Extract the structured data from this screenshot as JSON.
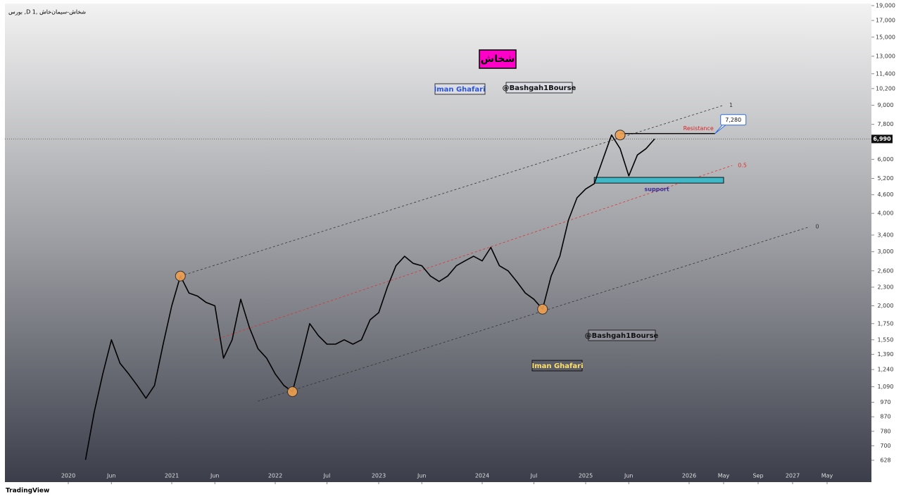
{
  "header": "بورس ,D شخاش-سیمان‌خاش ,1",
  "footer": "TradingView",
  "annotations": [
    "Iman Ghafari",
    "@Bashgah1Bourse",
    "@Bashgah1Bourse",
    "Iman Ghafari"
  ],
  "chart_data": {
    "type": "line",
    "title": "شخاش",
    "log_scale": true,
    "color": "#000000",
    "x": [
      "2020-03",
      "2020-04",
      "2020-05",
      "2020-06",
      "2020-07",
      "2020-08",
      "2020-09",
      "2020-10",
      "2020-11",
      "2020-12",
      "2021-01",
      "2021-02",
      "2021-03",
      "2021-04",
      "2021-05",
      "2021-06",
      "2021-07",
      "2021-08",
      "2021-09",
      "2021-10",
      "2021-11",
      "2021-12",
      "2022-01",
      "2022-02",
      "2022-03",
      "2022-04",
      "2022-05",
      "2022-06",
      "2022-07",
      "2022-08",
      "2022-09",
      "2022-10",
      "2022-11",
      "2022-12",
      "2023-01",
      "2023-02",
      "2023-03",
      "2023-04",
      "2023-05",
      "2023-06",
      "2023-07",
      "2023-08",
      "2023-09",
      "2023-10",
      "2023-11",
      "2023-12",
      "2024-01",
      "2024-02",
      "2024-03",
      "2024-04",
      "2024-05",
      "2024-06",
      "2024-07",
      "2024-08",
      "2024-09",
      "2024-10",
      "2024-11",
      "2024-12",
      "2025-01",
      "2025-02",
      "2025-03",
      "2025-04",
      "2025-05",
      "2025-06",
      "2025-07",
      "2025-08",
      "2025-09"
    ],
    "values": [
      630,
      900,
      1200,
      1550,
      1300,
      1200,
      1100,
      1000,
      1100,
      1500,
      2000,
      2500,
      2200,
      2150,
      2050,
      2000,
      1350,
      1550,
      2100,
      1700,
      1450,
      1350,
      1200,
      1100,
      1050,
      1350,
      1750,
      1600,
      1500,
      1500,
      1550,
      1500,
      1550,
      1800,
      1900,
      2300,
      2700,
      2900,
      2750,
      2700,
      2500,
      2400,
      2500,
      2700,
      2800,
      2900,
      2800,
      3100,
      2700,
      2600,
      2400,
      2200,
      2100,
      1950,
      2500,
      2900,
      3800,
      4500,
      4800,
      5000,
      6000,
      7200,
      6500,
      5300,
      6200,
      6500,
      6990
    ],
    "ylim": [
      533,
      19000
    ],
    "yticks": [
      {
        "value": 19000,
        "label": "19,000"
      },
      {
        "value": 17000,
        "label": "17,000"
      },
      {
        "value": 15000,
        "label": "15,000"
      },
      {
        "value": 13000,
        "label": "13,000"
      },
      {
        "value": 11400,
        "label": "11,400"
      },
      {
        "value": 10200,
        "label": "10,200"
      },
      {
        "value": 9000,
        "label": "9,000"
      },
      {
        "value": 7800,
        "label": "7,800"
      },
      {
        "value": 6000,
        "label": "6,000"
      },
      {
        "value": 5200,
        "label": "5,200"
      },
      {
        "value": 4600,
        "label": "4,600"
      },
      {
        "value": 4000,
        "label": "4,000"
      },
      {
        "value": 3400,
        "label": "3,400"
      },
      {
        "value": 3000,
        "label": "3,000"
      },
      {
        "value": 2600,
        "label": "2,600"
      },
      {
        "value": 2300,
        "label": "2,300"
      },
      {
        "value": 2000,
        "label": "2,000"
      },
      {
        "value": 1750,
        "label": "1,750"
      },
      {
        "value": 1550,
        "label": "1,550"
      },
      {
        "value": 1390,
        "label": "1,390"
      },
      {
        "value": 1240,
        "label": "1,240"
      },
      {
        "value": 1090,
        "label": "1,090"
      },
      970,
      870,
      780,
      700,
      628
    ],
    "xticks": [
      {
        "value": "2020-01",
        "label": "2020"
      },
      {
        "value": "2020-06",
        "label": "Jun"
      },
      {
        "value": "2021-01",
        "label": "2021"
      },
      {
        "value": "2021-06",
        "label": "Jun"
      },
      {
        "value": "2022-01",
        "label": "2022"
      },
      {
        "value": "2022-07",
        "label": "Jul"
      },
      {
        "value": "2023-01",
        "label": "2023"
      },
      {
        "value": "2023-06",
        "label": "Jun"
      },
      {
        "value": "2024-01",
        "label": "2024"
      },
      {
        "value": "2024-07",
        "label": "Jul"
      },
      {
        "value": "2025-01",
        "label": "2025"
      },
      {
        "value": "2025-06",
        "label": "Jun"
      },
      {
        "value": "2026-01",
        "label": "2026"
      },
      {
        "value": "2026-05",
        "label": "May"
      },
      {
        "value": "2026-09",
        "label": "Sep"
      },
      {
        "value": "2027-01",
        "label": "2027"
      },
      {
        "value": "2027-05",
        "label": "May"
      }
    ],
    "channels": [
      {
        "label": "1",
        "color": "#333333",
        "x": [
          "2021-02",
          "2026-05"
        ],
        "values": [
          2500,
          9000
        ]
      },
      {
        "label": "0.5",
        "color": "#e03030",
        "x": [
          "2021-06",
          "2026-06"
        ],
        "values": [
          1550,
          5730
        ]
      },
      {
        "label": "0",
        "color": "#333333",
        "x": [
          "2021-11",
          "2027-03"
        ],
        "values": [
          978,
          3620
        ]
      }
    ],
    "support": {
      "label": "support",
      "color": "#3fb8c8",
      "x": [
        "2025-02",
        "2026-05"
      ],
      "values": [
        5020,
        5240
      ]
    },
    "resistance": {
      "label": "Resistance",
      "x": [
        "2025-05",
        "2026-04"
      ],
      "value": 7280,
      "value_label": "7,280"
    },
    "price_line": {
      "value": 6990,
      "label": "6,990"
    },
    "pivots": {
      "color": "#f0a050",
      "x": [
        "2021-02",
        "2022-03",
        "2024-08",
        "2025-05"
      ],
      "values": [
        2500,
        1050,
        1950,
        7200
      ]
    }
  }
}
